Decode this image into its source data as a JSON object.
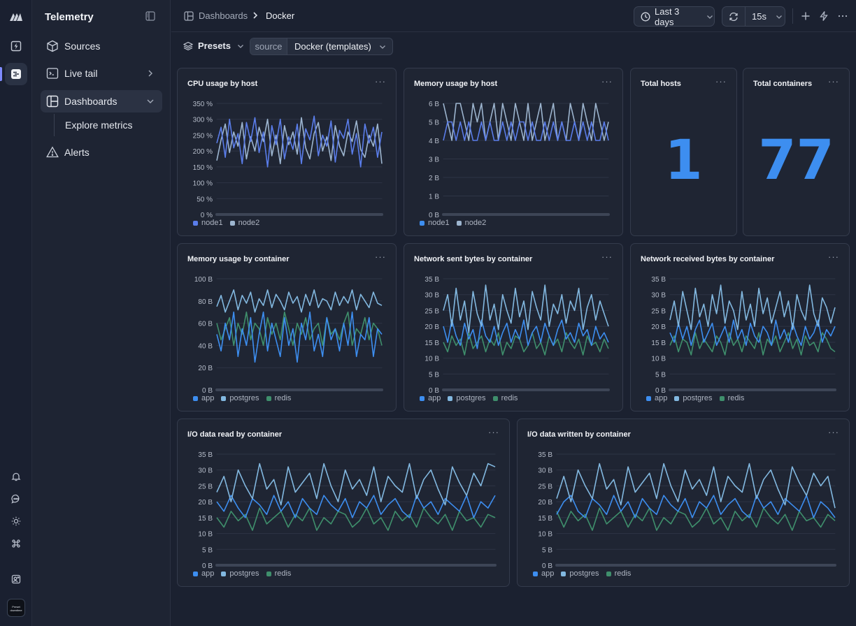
{
  "app": {
    "title": "Telemetry"
  },
  "sidebar": {
    "items": [
      {
        "label": "Sources",
        "icon": "box-icon"
      },
      {
        "label": "Live tail",
        "icon": "terminal-icon"
      },
      {
        "label": "Dashboards",
        "icon": "layout-icon"
      },
      {
        "label": "Explore metrics"
      },
      {
        "label": "Alerts",
        "icon": "warning-icon"
      }
    ]
  },
  "rail": {
    "avatar_text": "Preset downtime"
  },
  "breadcrumb": {
    "parent": "Dashboards",
    "current": "Docker"
  },
  "toolbar": {
    "time_range": "Last 3 days",
    "refresh_interval": "15s"
  },
  "filters": {
    "presets_label": "Presets",
    "source_key": "source",
    "source_value": "Docker (templates)"
  },
  "colors": {
    "series1": "#3d8ef0",
    "series2": "#82b8e0",
    "series3": "#3f8f6c",
    "big_number": "#3d8ef0",
    "accent": "#7f8bff"
  },
  "panels": [
    {
      "title": "CPU usage by host",
      "chart_data": {
        "type": "line",
        "yticks": [
          "350 %",
          "300 %",
          "250 %",
          "200 %",
          "150 %",
          "100 %",
          "50 %",
          "0 %"
        ],
        "ylim": [
          0,
          350
        ],
        "series": [
          {
            "name": "node1",
            "values": [
              225,
              275,
              180,
              300,
              210,
              255,
              160,
              290,
              230,
              305,
              195,
              260,
              150,
              280,
              220,
              300,
              175,
              245,
              205,
              285,
              160,
              270,
              235,
              310,
              185,
              250,
              215,
              295,
              165,
              265,
              240,
              300,
              190,
              255,
              150,
              285,
              225,
              275,
              180,
              260
            ]
          },
          {
            "name": "node2",
            "values": [
              170,
              235,
              285,
              195,
              260,
              215,
              290,
              175,
              245,
              200,
              275,
              230,
              300,
              185,
              250,
              160,
              280,
              220,
              260,
              190,
              305,
              210,
              175,
              255,
              290,
              200,
              245,
              170,
              280,
              215,
              185,
              260,
              230,
              295,
              205,
              180,
              250,
              215,
              285,
              160
            ]
          }
        ]
      }
    },
    {
      "title": "Memory usage by host",
      "chart_data": {
        "type": "line",
        "yticks": [
          "6 B",
          "5 B",
          "4 B",
          "3 B",
          "2 B",
          "1 B",
          "0 B"
        ],
        "ylim": [
          0,
          6
        ],
        "series": [
          {
            "name": "node1",
            "values": [
              4,
              5,
              5,
              4,
              5,
              4,
              5,
              4,
              4,
              5,
              4,
              5,
              4,
              4,
              5,
              4,
              5,
              4,
              5,
              5,
              4,
              5,
              4,
              4,
              5,
              4,
              5,
              4,
              5,
              4,
              4,
              5,
              4,
              5,
              4,
              5,
              4,
              4,
              5,
              4
            ]
          },
          {
            "name": "node2",
            "values": [
              6,
              5,
              4,
              6,
              6,
              5,
              4,
              6,
              5,
              6,
              4,
              5,
              6,
              4,
              6,
              5,
              4,
              6,
              5,
              4,
              6,
              4,
              5,
              6,
              4,
              5,
              6,
              4,
              5,
              4,
              6,
              5,
              4,
              6,
              5,
              4,
              6,
              5,
              4,
              5
            ]
          }
        ]
      }
    },
    {
      "title": "Total hosts",
      "value": "1"
    },
    {
      "title": "Total containers",
      "value": "77"
    },
    {
      "title": "Memory usage by container",
      "chart_data": {
        "type": "line",
        "yticks": [
          "100 B",
          "80 B",
          "60 B",
          "40 B",
          "20 B",
          "0 B"
        ],
        "ylim": [
          0,
          100
        ],
        "series": [
          {
            "name": "app",
            "values": [
              50,
              35,
              60,
              45,
              70,
              30,
              55,
              40,
              65,
              25,
              50,
              70,
              35,
              60,
              45,
              30,
              65,
              40,
              55,
              25,
              60,
              45,
              70,
              35,
              50,
              30,
              65,
              45,
              55,
              35,
              60,
              40,
              70,
              30,
              50,
              45,
              65,
              30,
              55,
              50
            ]
          },
          {
            "name": "postgres",
            "values": [
              75,
              85,
              70,
              80,
              90,
              72,
              85,
              78,
              88,
              70,
              82,
              76,
              90,
              74,
              86,
              80,
              72,
              88,
              78,
              84,
              70,
              86,
              76,
              90,
              74,
              82,
              80,
              72,
              88,
              76,
              84,
              78,
              90,
              72,
              86,
              80,
              74,
              88,
              78,
              76
            ]
          },
          {
            "name": "redis",
            "values": [
              60,
              45,
              55,
              65,
              40,
              60,
              50,
              70,
              45,
              60,
              55,
              40,
              65,
              50,
              60,
              45,
              70,
              55,
              40,
              60,
              50,
              65,
              45,
              55,
              60,
              40,
              65,
              50,
              55,
              45,
              60,
              70,
              40,
              55,
              50,
              65,
              45,
              60,
              55,
              40
            ]
          }
        ]
      }
    },
    {
      "title": "Network sent bytes by container",
      "chart_data": {
        "type": "line",
        "yticks": [
          "35 B",
          "30 B",
          "25 B",
          "20 B",
          "15 B",
          "10 B",
          "5 B",
          "0 B"
        ],
        "ylim": [
          0,
          35
        ],
        "series": [
          {
            "name": "app",
            "values": [
              20,
              15,
              22,
              17,
              14,
              21,
              16,
              19,
              13,
              22,
              17,
              15,
              20,
              14,
              18,
              21,
              15,
              19,
              16,
              22,
              14,
              18,
              20,
              15,
              21,
              17,
              14,
              19,
              22,
              16,
              18,
              15,
              21,
              17,
              19,
              14,
              20,
              16,
              18,
              15
            ]
          },
          {
            "name": "postgres",
            "values": [
              25,
              30,
              20,
              32,
              22,
              28,
              18,
              31,
              24,
              20,
              33,
              22,
              27,
              19,
              30,
              25,
              21,
              32,
              23,
              28,
              19,
              31,
              26,
              22,
              33,
              20,
              27,
              24,
              30,
              21,
              28,
              25,
              32,
              19,
              26,
              30,
              22,
              28,
              24,
              20
            ]
          },
          {
            "name": "redis",
            "values": [
              15,
              12,
              17,
              14,
              16,
              11,
              18,
              13,
              15,
              17,
              12,
              16,
              14,
              18,
              11,
              15,
              13,
              17,
              16,
              12,
              14,
              18,
              13,
              15,
              11,
              17,
              14,
              16,
              12,
              18,
              15,
              13,
              16,
              11,
              17,
              14,
              15,
              12,
              16,
              13
            ]
          }
        ]
      }
    },
    {
      "title": "Network received bytes by container",
      "chart_data": {
        "type": "line",
        "yticks": [
          "35 B",
          "30 B",
          "25 B",
          "20 B",
          "15 B",
          "10 B",
          "5 B",
          "0 B"
        ],
        "ylim": [
          0,
          35
        ],
        "series": [
          {
            "name": "app",
            "values": [
              18,
              15,
              21,
              16,
              20,
              14,
              19,
              22,
              15,
              18,
              21,
              14,
              17,
              20,
              15,
              22,
              16,
              19,
              14,
              21,
              17,
              15,
              20,
              18,
              14,
              22,
              16,
              19,
              15,
              21,
              17,
              14,
              20,
              16,
              18,
              22,
              15,
              19,
              17,
              20
            ]
          },
          {
            "name": "postgres",
            "values": [
              22,
              28,
              20,
              31,
              25,
              19,
              32,
              23,
              27,
              20,
              30,
              24,
              33,
              21,
              28,
              25,
              19,
              31,
              22,
              27,
              20,
              32,
              24,
              29,
              21,
              26,
              31,
              23,
              28,
              19,
              30,
              25,
              22,
              33,
              24,
              20,
              29,
              26,
              21,
              26
            ]
          },
          {
            "name": "redis",
            "values": [
              14,
              17,
              12,
              16,
              15,
              11,
              18,
              13,
              16,
              14,
              12,
              17,
              15,
              11,
              18,
              14,
              16,
              12,
              17,
              15,
              13,
              18,
              11,
              16,
              14,
              17,
              12,
              15,
              18,
              13,
              16,
              11,
              17,
              14,
              15,
              12,
              18,
              16,
              13,
              12
            ]
          }
        ]
      }
    },
    {
      "title": "I/O data read by container",
      "chart_data": {
        "type": "line",
        "yticks": [
          "35 B",
          "30 B",
          "25 B",
          "20 B",
          "15 B",
          "10 B",
          "5 B",
          "0 B"
        ],
        "ylim": [
          0,
          35
        ],
        "series": [
          {
            "name": "app",
            "values": [
              20,
              17,
              22,
              18,
              15,
              21,
              19,
              16,
              22,
              17,
              20,
              15,
              21,
              18,
              16,
              22,
              19,
              17,
              21,
              15,
              20,
              18,
              22,
              16,
              19,
              21,
              17,
              15,
              22,
              18,
              20,
              16,
              21,
              19,
              17,
              22,
              15,
              20,
              18,
              22
            ]
          },
          {
            "name": "postgres",
            "values": [
              23,
              28,
              20,
              30,
              25,
              21,
              32,
              24,
              27,
              19,
              31,
              23,
              26,
              29,
              21,
              32,
              25,
              20,
              30,
              24,
              27,
              22,
              31,
              20,
              28,
              25,
              23,
              32,
              21,
              27,
              30,
              24,
              19,
              31,
              26,
              22,
              29,
              25,
              32,
              31
            ]
          },
          {
            "name": "redis",
            "values": [
              15,
              12,
              17,
              14,
              16,
              11,
              18,
              13,
              15,
              17,
              12,
              16,
              14,
              18,
              11,
              15,
              13,
              17,
              16,
              12,
              14,
              18,
              13,
              15,
              11,
              17,
              14,
              16,
              12,
              18,
              15,
              13,
              16,
              11,
              17,
              14,
              15,
              12,
              16,
              15
            ]
          }
        ]
      }
    },
    {
      "title": "I/O data written by container",
      "chart_data": {
        "type": "line",
        "yticks": [
          "35 B",
          "30 B",
          "25 B",
          "20 B",
          "15 B",
          "10 B",
          "5 B",
          "0 B"
        ],
        "ylim": [
          0,
          35
        ],
        "series": [
          {
            "name": "app",
            "values": [
              16,
              20,
              22,
              17,
              15,
              21,
              19,
              16,
              22,
              17,
              20,
              15,
              21,
              18,
              16,
              22,
              19,
              17,
              21,
              15,
              20,
              18,
              22,
              16,
              19,
              21,
              17,
              15,
              22,
              18,
              20,
              16,
              21,
              19,
              17,
              22,
              15,
              20,
              18,
              15
            ]
          },
          {
            "name": "postgres",
            "values": [
              21,
              28,
              20,
              30,
              25,
              21,
              32,
              24,
              27,
              19,
              31,
              23,
              26,
              29,
              21,
              32,
              25,
              20,
              30,
              24,
              27,
              22,
              31,
              20,
              28,
              25,
              23,
              32,
              21,
              27,
              30,
              24,
              19,
              31,
              26,
              22,
              29,
              25,
              28,
              18
            ]
          },
          {
            "name": "redis",
            "values": [
              17,
              12,
              17,
              14,
              16,
              11,
              18,
              13,
              15,
              17,
              12,
              16,
              14,
              18,
              11,
              15,
              13,
              17,
              16,
              12,
              14,
              18,
              13,
              15,
              11,
              17,
              14,
              16,
              12,
              18,
              15,
              13,
              16,
              11,
              17,
              14,
              15,
              12,
              16,
              14
            ]
          }
        ]
      }
    }
  ]
}
